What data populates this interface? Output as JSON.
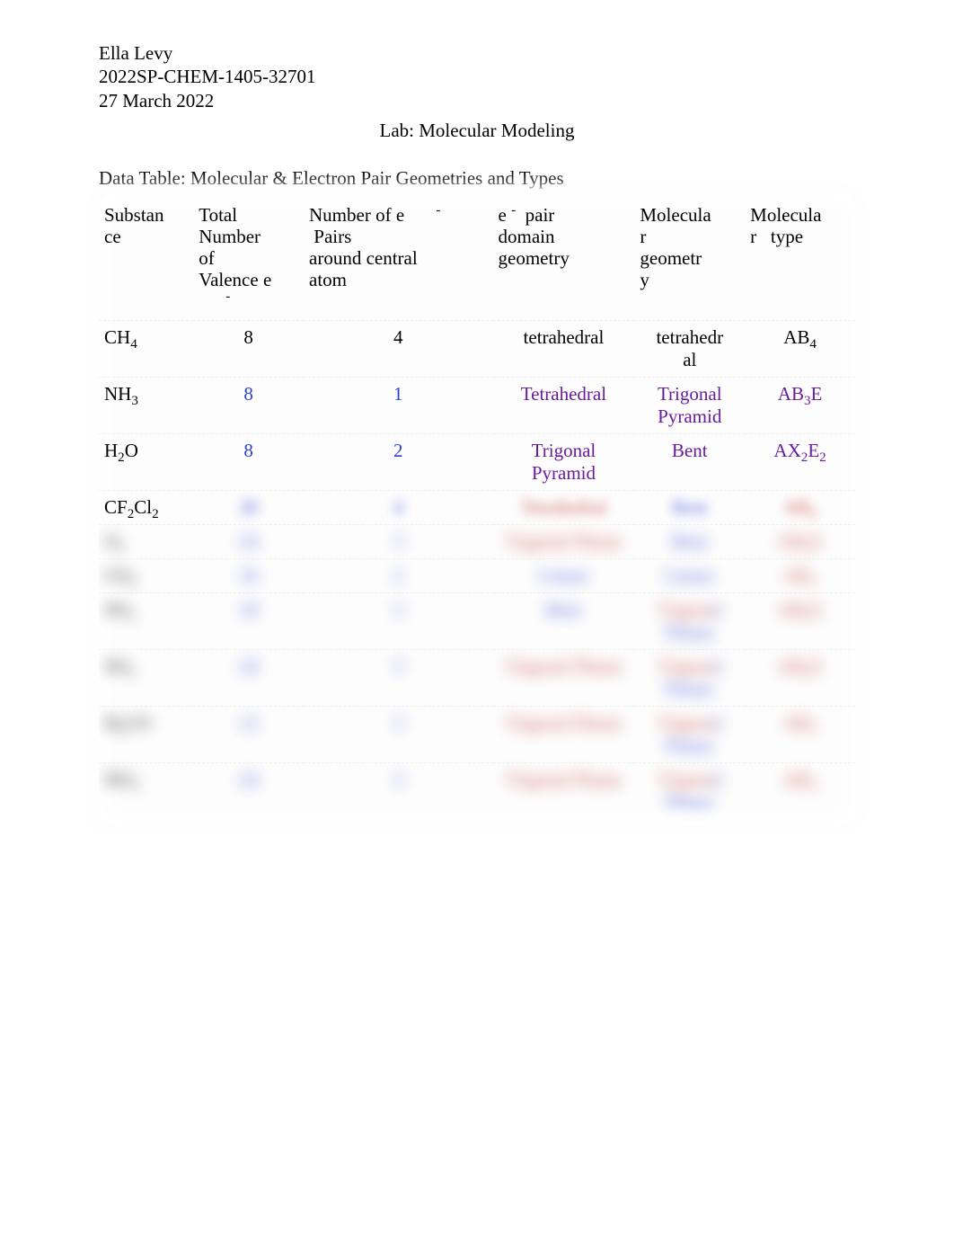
{
  "header": {
    "name": "Ella Levy",
    "course": "2022SP-CHEM-1405-32701",
    "date": "27 March 2022"
  },
  "title": "Lab: Molecular Modeling",
  "table": {
    "caption": "Data Table: Molecular & Electron Pair Geometries and Types",
    "columns": {
      "c0": {
        "label": "Substance"
      },
      "c1": {
        "label_l1": "Total",
        "label_l2": "Number",
        "label_l3": "of",
        "label_l4": "Valence e",
        "sup": "-"
      },
      "c2": {
        "label_l1": "Number of e",
        "sup": "-",
        "label_extra": "Pairs",
        "label_l2": "around central",
        "label_l3": "atom"
      },
      "c3": {
        "label_l1": "e",
        "sup": "-",
        "label_extra": "pair",
        "label_l2": "domain",
        "label_l3": "geometry"
      },
      "c4": {
        "label_l1": "Molecula",
        "label_l2": "r",
        "label_l3": "geometr",
        "label_l4": "y"
      },
      "c5": {
        "label_l1": "Molecula",
        "label_l2": "r",
        "label_extra": "type"
      }
    },
    "rows": [
      {
        "substance_html": "CH<sub>4</sub>",
        "valence": "8",
        "valence_color": "#000000",
        "pairs": "4",
        "pairs_color": "#000000",
        "edom": "tetrahedral",
        "edom_color": "#000000",
        "geom": "tetrahedral",
        "geom_color": "#000000",
        "geom_multiline": true,
        "type_html": "AB<sub>4</sub>",
        "type_color": "#000000",
        "blurred": false
      },
      {
        "substance_html": "NH<sub>3</sub>",
        "valence": "8",
        "valence_color": "#2b3fd4",
        "pairs": "1",
        "pairs_color": "#2b3fd4",
        "edom": "Tetrahedral",
        "edom_color": "#6a1b9a",
        "geom": "Trigonal Pyramid",
        "geom_color": "#6a1b9a",
        "geom_multiline": true,
        "type_html": "AB<sub>3</sub>E",
        "type_color": "#6a1b9a",
        "blurred": false
      },
      {
        "substance_html": "H<sub>2</sub>O",
        "valence": "8",
        "valence_color": "#2b3fd4",
        "pairs": "2",
        "pairs_color": "#2b3fd4",
        "edom": "Trigonal Pyramid",
        "edom_color": "#6a1b9a",
        "edom_multiline": true,
        "geom": "Bent",
        "geom_color": "#6a1b9a",
        "type_html": "AX<sub>2</sub>E<sub>2</sub>",
        "type_color": "#6a1b9a",
        "blurred": false
      },
      {
        "substance_html": "CF<sub>2</sub>Cl<sub>2</sub>",
        "substance_color": "#000000",
        "valence": "20",
        "valence_color": "#2b3fd4",
        "pairs": "4",
        "pairs_color": "#2b3fd4",
        "edom": "Tetrahedral",
        "edom_color": "#c0392b",
        "geom": "Bent",
        "geom_color": "#2b3fd4",
        "type_html": "AB<sub>4</sub>",
        "type_color": "#c0392b",
        "blurred": "values"
      },
      {
        "substance_html": "O<sub>3</sub>",
        "substance_color": "#000000",
        "valence": "24",
        "valence_color": "#2b3fd4",
        "pairs": "3",
        "pairs_color": "#2b3fd4",
        "edom": "Trigonal Planar",
        "edom_color": "#c0392b",
        "geom": "Bent",
        "geom_color": "#2b3fd4",
        "type_html": "AB<sub>2</sub>E",
        "type_color": "#c0392b",
        "blurred": "all"
      },
      {
        "substance_html": "CO<sub>2</sub>",
        "substance_color": "#000000",
        "valence": "16",
        "valence_color": "#2b3fd4",
        "pairs": "2",
        "pairs_color": "#2b3fd4",
        "edom": "Linear",
        "edom_color": "#2b3fd4",
        "geom": "Linear",
        "geom_color": "#2b3fd4",
        "type_html": "AB<sub>2</sub>",
        "type_color": "#c0392b",
        "blurred": "all"
      },
      {
        "substance_html": "SO<sub>2</sub>",
        "substance_color": "#000000",
        "valence": "18",
        "valence_color": "#2b3fd4",
        "pairs": "3",
        "pairs_color": "#2b3fd4",
        "edom": "Bent",
        "edom_color": "#2b3fd4",
        "geom": "Trigonal Planar",
        "geom_color": "mixed",
        "geom_multiline": true,
        "type_html": "AB<sub>2</sub>E",
        "type_color": "#c0392b",
        "blurred": "all"
      },
      {
        "substance_html": "SO<sub>3</sub>",
        "substance_color": "#000000",
        "valence": "24",
        "valence_color": "#2b3fd4",
        "pairs": "3",
        "pairs_color": "#2b3fd4",
        "edom": "Trigonal Planar",
        "edom_color": "#c0392b",
        "geom": "Trigonal Planar",
        "geom_color": "mixed",
        "geom_multiline": true,
        "type_html": "AB<sub>2</sub>E",
        "type_color": "#c0392b",
        "blurred": "all"
      },
      {
        "substance_html": "H<sub>2</sub>CO",
        "substance_color": "#000000",
        "valence": "12",
        "valence_color": "#2b3fd4",
        "pairs": "3",
        "pairs_color": "#2b3fd4",
        "edom": "Trigonal Planar",
        "edom_color": "#c0392b",
        "geom": "Trigonal Planar",
        "geom_color": "mixed",
        "geom_multiline": true,
        "type_html": "AB<sub>3</sub>",
        "type_color": "#c0392b",
        "blurred": "all"
      },
      {
        "substance_html": "NO<sub>3</sub><sup>−</sup>",
        "substance_color": "#000000",
        "valence": "24",
        "valence_color": "#2b3fd4",
        "pairs": "3",
        "pairs_color": "#2b3fd4",
        "edom": "Trigonal Planar",
        "edom_color": "#c0392b",
        "geom": "Trigonal Planar",
        "geom_color": "mixed",
        "geom_multiline": true,
        "type_html": "AB<sub>3</sub>",
        "type_color": "#c0392b",
        "blurred": "all"
      }
    ],
    "colors": {
      "background": "#ffffff",
      "text": "#000000",
      "purple": "#6a1b9a",
      "blue": "#2b3fd4",
      "red": "#c0392b",
      "row_border": "rgba(150,150,150,0.12)"
    }
  }
}
